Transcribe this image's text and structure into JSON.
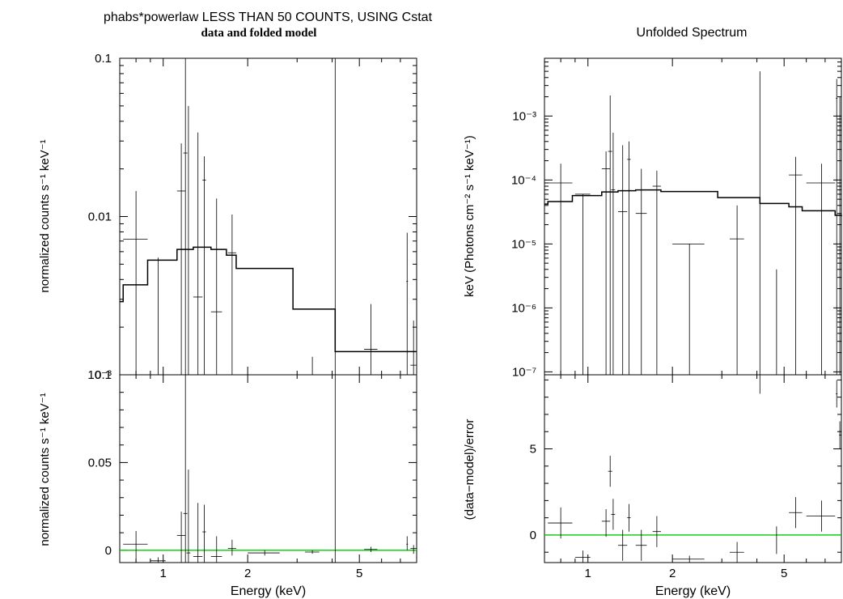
{
  "header": {
    "left_title": "phabs*powerlaw LESS THAN 50 COUNTS, USING Cstat",
    "left_subtitle": "data and folded model",
    "right_title": "Unfolded Spectrum"
  },
  "colors": {
    "frame": "#000000",
    "data": "#000000",
    "model": "#000000",
    "zero_line": "#00cc00"
  },
  "chart_data": [
    {
      "type": "line",
      "name_id": "left-top",
      "ylabel": "normalized counts s⁻¹ keV⁻¹",
      "xscale": "log",
      "yscale": "log",
      "xlim": [
        0.7,
        8.0
      ],
      "ylim": [
        0.001,
        0.1
      ],
      "x_ticks": [
        {
          "value": 1,
          "label": "1"
        },
        {
          "value": 2,
          "label": "2"
        },
        {
          "value": 5,
          "label": "5"
        }
      ],
      "y_ticks": [
        {
          "value": 0.1,
          "label": "0.1"
        },
        {
          "value": 0.01,
          "label": "0.01"
        },
        {
          "value": 0.001,
          "label": "10⁻³"
        }
      ],
      "model": {
        "x": [
          0.7,
          0.72,
          0.88,
          1.12,
          1.28,
          1.48,
          1.68,
          1.82,
          2.9,
          4.1
        ],
        "y": [
          0.0029,
          0.0037,
          0.0053,
          0.0062,
          0.0064,
          0.0062,
          0.0057,
          0.0047,
          0.0026,
          0.0014
        ]
      },
      "points": [
        {
          "x": 0.8,
          "xlo": 0.72,
          "xhi": 0.88,
          "y": 0.0072,
          "ylo": 0.001,
          "yhi": 0.0145
        },
        {
          "x": 0.96,
          "xlo": 0.9,
          "xhi": 1.02,
          "y": 0.0053,
          "ylo": 0.001,
          "yhi": 0.0055
        },
        {
          "x": 1.16,
          "xlo": 1.12,
          "xhi": 1.2,
          "y": 0.0145,
          "ylo": 0.001,
          "yhi": 0.029
        },
        {
          "x": 1.2,
          "xlo": 1.18,
          "xhi": 1.22,
          "y": 0.0252,
          "ylo": 0.001,
          "yhi": 0.1
        },
        {
          "x": 1.23,
          "xlo": 1.21,
          "xhi": 1.25,
          "y": 0.0062,
          "ylo": 0.001,
          "yhi": 0.05
        },
        {
          "x": 1.33,
          "xlo": 1.28,
          "xhi": 1.38,
          "y": 0.0031,
          "ylo": 0.001,
          "yhi": 0.034
        },
        {
          "x": 1.4,
          "xlo": 1.38,
          "xhi": 1.42,
          "y": 0.017,
          "ylo": 0.001,
          "yhi": 0.024
        },
        {
          "x": 1.55,
          "xlo": 1.48,
          "xhi": 1.62,
          "y": 0.0025,
          "ylo": 0.001,
          "yhi": 0.013
        },
        {
          "x": 1.76,
          "xlo": 1.7,
          "xhi": 1.82,
          "y": 0.0059,
          "ylo": 0.001,
          "yhi": 0.0103
        },
        {
          "x": 3.4,
          "xlo": 3.4,
          "xhi": 3.4,
          "y": 0.0011,
          "ylo": 0.001,
          "yhi": 0.0013
        },
        {
          "x": 4.1,
          "xlo": 4.1,
          "xhi": 4.1,
          "y": 0.001,
          "ylo": 0.001,
          "yhi": 0.1
        },
        {
          "x": 5.5,
          "xlo": 5.2,
          "xhi": 5.8,
          "y": 0.00145,
          "ylo": 0.001,
          "yhi": 0.0028
        },
        {
          "x": 7.4,
          "xlo": 7.35,
          "xhi": 7.45,
          "y": 0.0039,
          "ylo": 0.001,
          "yhi": 0.0079
        },
        {
          "x": 7.8,
          "xlo": 7.6,
          "xhi": 8.0,
          "y": 0.00115,
          "ylo": 0.001,
          "yhi": 0.0022
        }
      ]
    },
    {
      "type": "line",
      "name_id": "left-bottom",
      "xlabel": "Energy (keV)",
      "ylabel": "normalized counts s⁻¹ keV⁻¹",
      "xscale": "log",
      "yscale": "linear",
      "xlim": [
        0.7,
        8.0
      ],
      "ylim": [
        -0.007,
        0.1
      ],
      "x_ticks": [
        {
          "value": 1,
          "label": "1"
        },
        {
          "value": 2,
          "label": "2"
        },
        {
          "value": 5,
          "label": "5"
        }
      ],
      "y_ticks": [
        {
          "value": 0.1,
          "label": "0.1"
        },
        {
          "value": 0.05,
          "label": "0.05"
        },
        {
          "value": 0,
          "label": "0"
        }
      ],
      "zero_line": 0,
      "points": [
        {
          "x": 0.8,
          "xlo": 0.72,
          "xhi": 0.88,
          "y": 0.0035,
          "ylo": -0.007,
          "yhi": 0.011
        },
        {
          "x": 0.96,
          "xlo": 0.9,
          "xhi": 1.02,
          "y": -0.006,
          "ylo": -0.007,
          "yhi": -0.004
        },
        {
          "x": 1.16,
          "xlo": 1.12,
          "xhi": 1.2,
          "y": 0.0085,
          "ylo": -0.007,
          "yhi": 0.022
        },
        {
          "x": 1.2,
          "xlo": 1.18,
          "xhi": 1.22,
          "y": 0.021,
          "ylo": -0.007,
          "yhi": 0.1
        },
        {
          "x": 1.23,
          "xlo": 1.21,
          "xhi": 1.25,
          "y": -0.0015,
          "ylo": -0.007,
          "yhi": 0.046
        },
        {
          "x": 1.33,
          "xlo": 1.28,
          "xhi": 1.38,
          "y": -0.0035,
          "ylo": -0.007,
          "yhi": 0.027
        },
        {
          "x": 1.4,
          "xlo": 1.38,
          "xhi": 1.42,
          "y": 0.0105,
          "ylo": -0.007,
          "yhi": 0.026
        },
        {
          "x": 1.55,
          "xlo": 1.48,
          "xhi": 1.62,
          "y": -0.0035,
          "ylo": -0.007,
          "yhi": 0.008
        },
        {
          "x": 1.76,
          "xlo": 1.7,
          "xhi": 1.82,
          "y": 0.001,
          "ylo": -0.003,
          "yhi": 0.006
        },
        {
          "x": 2.3,
          "xlo": 2.0,
          "xhi": 2.6,
          "y": -0.0015,
          "ylo": -0.003,
          "yhi": 0.0
        },
        {
          "x": 3.4,
          "xlo": 3.2,
          "xhi": 3.6,
          "y": -0.001,
          "ylo": -0.002,
          "yhi": 0.0
        },
        {
          "x": 4.1,
          "xlo": 4.1,
          "xhi": 4.1,
          "y": 0.0,
          "ylo": -0.007,
          "yhi": 0.1
        },
        {
          "x": 5.5,
          "xlo": 5.2,
          "xhi": 5.8,
          "y": 0.0005,
          "ylo": -0.001,
          "yhi": 0.002
        },
        {
          "x": 7.4,
          "xlo": 7.35,
          "xhi": 7.45,
          "y": 0.0035,
          "ylo": 0.0,
          "yhi": 0.008
        },
        {
          "x": 7.8,
          "xlo": 7.6,
          "xhi": 8.0,
          "y": 0.001,
          "ylo": -0.002,
          "yhi": 0.003
        }
      ]
    },
    {
      "type": "line",
      "name_id": "right-top",
      "ylabel": "keV (Photons cm⁻² s⁻¹ keV⁻¹)",
      "xscale": "log",
      "yscale": "log",
      "xlim": [
        0.7,
        8.0
      ],
      "ylim": [
        9e-08,
        0.008
      ],
      "x_ticks": [
        {
          "value": 1,
          "label": "1"
        },
        {
          "value": 2,
          "label": "2"
        },
        {
          "value": 5,
          "label": "5"
        }
      ],
      "y_ticks": [
        {
          "value": 0.001,
          "label": "10⁻³"
        },
        {
          "value": 0.0001,
          "label": "10⁻⁴"
        },
        {
          "value": 1e-05,
          "label": "10⁻⁵"
        },
        {
          "value": 1e-06,
          "label": "10⁻⁶"
        },
        {
          "value": 1e-07,
          "label": "10⁻⁷"
        }
      ],
      "model": {
        "x": [
          0.7,
          0.72,
          0.88,
          1.12,
          1.28,
          1.48,
          1.68,
          1.82,
          2.9,
          4.1,
          5.2,
          5.8,
          7.6,
          8.0
        ],
        "y": [
          4.2e-05,
          4.6e-05,
          5.7e-05,
          6.5e-05,
          6.8e-05,
          7e-05,
          7e-05,
          6.6e-05,
          5.3e-05,
          4.3e-05,
          3.8e-05,
          3.3e-05,
          2.8e-05,
          2.7e-05
        ]
      },
      "points": [
        {
          "x": 0.8,
          "xlo": 0.72,
          "xhi": 0.88,
          "y": 9e-05,
          "ylo": 9e-08,
          "yhi": 0.00018
        },
        {
          "x": 0.96,
          "xlo": 0.9,
          "xhi": 1.02,
          "y": 6e-05,
          "ylo": 9e-08,
          "yhi": 6e-05
        },
        {
          "x": 1.16,
          "xlo": 1.12,
          "xhi": 1.2,
          "y": 0.00015,
          "ylo": 9e-08,
          "yhi": 0.00028
        },
        {
          "x": 1.2,
          "xlo": 1.18,
          "xhi": 1.22,
          "y": 0.00028,
          "ylo": 9e-08,
          "yhi": 0.0021
        },
        {
          "x": 1.23,
          "xlo": 1.21,
          "xhi": 1.25,
          "y": 7e-05,
          "ylo": 9e-08,
          "yhi": 0.00055
        },
        {
          "x": 1.33,
          "xlo": 1.28,
          "xhi": 1.38,
          "y": 3.2e-05,
          "ylo": 9e-08,
          "yhi": 0.00035
        },
        {
          "x": 1.4,
          "xlo": 1.38,
          "xhi": 1.42,
          "y": 0.00021,
          "ylo": 9e-08,
          "yhi": 0.0004
        },
        {
          "x": 1.55,
          "xlo": 1.48,
          "xhi": 1.62,
          "y": 3e-05,
          "ylo": 9e-08,
          "yhi": 0.00015
        },
        {
          "x": 1.76,
          "xlo": 1.7,
          "xhi": 1.82,
          "y": 8e-05,
          "ylo": 9e-08,
          "yhi": 0.00014
        },
        {
          "x": 2.3,
          "xlo": 2.0,
          "xhi": 2.6,
          "y": 1e-05,
          "ylo": 9e-08,
          "yhi": 1e-05
        },
        {
          "x": 3.4,
          "xlo": 3.2,
          "xhi": 3.6,
          "y": 1.2e-05,
          "ylo": 9e-08,
          "yhi": 4e-05
        },
        {
          "x": 4.1,
          "xlo": 4.1,
          "xhi": 4.1,
          "y": 0.0001,
          "ylo": 9e-08,
          "yhi": 0.005
        },
        {
          "x": 4.7,
          "xlo": 4.7,
          "xhi": 4.7,
          "y": 4e-06,
          "ylo": 9e-08,
          "yhi": 4e-06
        },
        {
          "x": 5.5,
          "xlo": 5.2,
          "xhi": 5.8,
          "y": 0.00012,
          "ylo": 9e-08,
          "yhi": 0.00023
        },
        {
          "x": 6.8,
          "xlo": 6.0,
          "xhi": 7.6,
          "y": 9e-05,
          "ylo": 9e-08,
          "yhi": 0.00018
        },
        {
          "x": 7.7,
          "xlo": 7.65,
          "xhi": 7.75,
          "y": 0.0019,
          "ylo": 9e-08,
          "yhi": 0.0038
        },
        {
          "x": 7.9,
          "xlo": 7.85,
          "xhi": 8.0,
          "y": 0.001,
          "ylo": 9e-08,
          "yhi": 0.002
        }
      ]
    },
    {
      "type": "line",
      "name_id": "right-bottom",
      "xlabel": "Energy (keV)",
      "ylabel": "(data−model)/error",
      "xscale": "log",
      "yscale": "linear",
      "xlim": [
        0.7,
        8.0
      ],
      "ylim": [
        -1.6,
        9.3
      ],
      "x_ticks": [
        {
          "value": 1,
          "label": "1"
        },
        {
          "value": 2,
          "label": "2"
        },
        {
          "value": 5,
          "label": "5"
        }
      ],
      "y_ticks": [
        {
          "value": 5,
          "label": "5"
        },
        {
          "value": 0,
          "label": "0"
        }
      ],
      "zero_line": 0,
      "points": [
        {
          "x": 0.8,
          "xlo": 0.72,
          "xhi": 0.88,
          "y": 0.7,
          "ylo": -0.2,
          "yhi": 1.6
        },
        {
          "x": 0.96,
          "xlo": 0.9,
          "xhi": 1.02,
          "y": -1.3,
          "ylo": -1.6,
          "yhi": -0.9
        },
        {
          "x": 1.16,
          "xlo": 1.12,
          "xhi": 1.2,
          "y": 0.8,
          "ylo": -0.1,
          "yhi": 1.5
        },
        {
          "x": 1.2,
          "xlo": 1.18,
          "xhi": 1.22,
          "y": 3.7,
          "ylo": 2.8,
          "yhi": 4.6
        },
        {
          "x": 1.23,
          "xlo": 1.21,
          "xhi": 1.25,
          "y": 1.2,
          "ylo": 0.3,
          "yhi": 2.1
        },
        {
          "x": 1.33,
          "xlo": 1.28,
          "xhi": 1.38,
          "y": -0.6,
          "ylo": -1.5,
          "yhi": 0.3
        },
        {
          "x": 1.4,
          "xlo": 1.38,
          "xhi": 1.42,
          "y": 1.0,
          "ylo": 0.2,
          "yhi": 1.8
        },
        {
          "x": 1.55,
          "xlo": 1.48,
          "xhi": 1.62,
          "y": -0.6,
          "ylo": -1.5,
          "yhi": 0.3
        },
        {
          "x": 1.76,
          "xlo": 1.7,
          "xhi": 1.82,
          "y": 0.2,
          "ylo": -0.7,
          "yhi": 1.1
        },
        {
          "x": 2.3,
          "xlo": 2.0,
          "xhi": 2.6,
          "y": -1.4,
          "ylo": -1.6,
          "yhi": -1.2
        },
        {
          "x": 3.4,
          "xlo": 3.2,
          "xhi": 3.6,
          "y": -1.0,
          "ylo": -1.6,
          "yhi": -0.4
        },
        {
          "x": 4.1,
          "xlo": 4.1,
          "xhi": 4.1,
          "y": 9.0,
          "ylo": 8.2,
          "yhi": 9.3
        },
        {
          "x": 4.7,
          "xlo": 4.7,
          "xhi": 4.7,
          "y": -0.3,
          "ylo": -1.1,
          "yhi": 0.5
        },
        {
          "x": 5.5,
          "xlo": 5.2,
          "xhi": 5.8,
          "y": 1.3,
          "ylo": 0.4,
          "yhi": 2.2
        },
        {
          "x": 6.8,
          "xlo": 6.0,
          "xhi": 7.6,
          "y": 1.1,
          "ylo": 0.2,
          "yhi": 2.0
        },
        {
          "x": 7.7,
          "xlo": 7.65,
          "xhi": 7.75,
          "y": 8.2,
          "ylo": 7.4,
          "yhi": 9.0
        },
        {
          "x": 7.9,
          "xlo": 7.85,
          "xhi": 8.0,
          "y": 5.8,
          "ylo": 5.0,
          "yhi": 6.6
        }
      ]
    }
  ]
}
